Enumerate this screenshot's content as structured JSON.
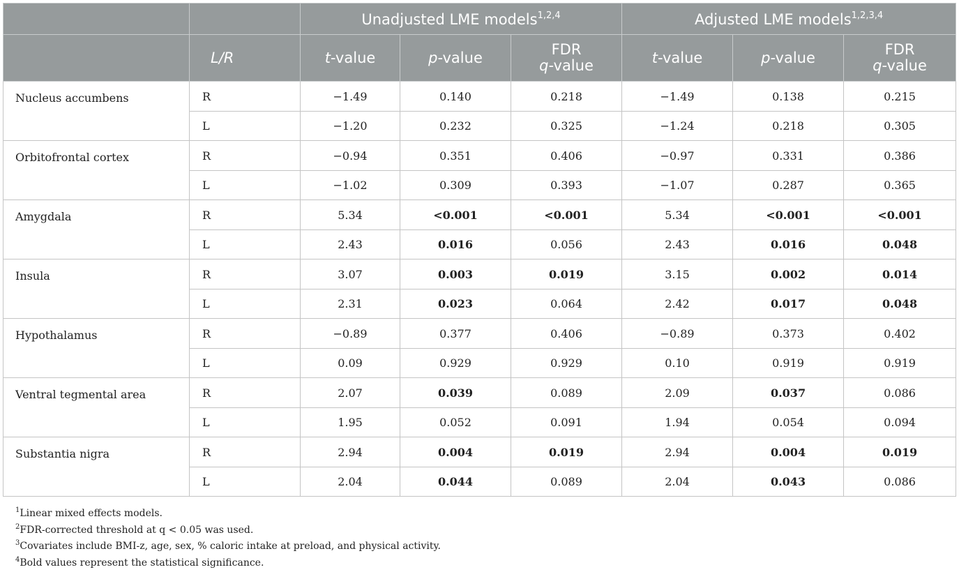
{
  "header": {
    "lr_label": "L/R",
    "groups": [
      {
        "title": "Unadjusted LME models",
        "sup": "1,2,4"
      },
      {
        "title": "Adjusted LME models",
        "sup": "1,2,3,4"
      }
    ],
    "cols": {
      "t": {
        "italic": "t",
        "rest": "-value"
      },
      "p": {
        "italic": "p",
        "rest": "-value"
      },
      "fdr": {
        "line1": "FDR",
        "italic": "q",
        "rest": "-value"
      }
    }
  },
  "regions": [
    {
      "name": "Nucleus accumbens",
      "rows": [
        {
          "side": "R",
          "vals": [
            "−1.49",
            "0.140",
            "0.218",
            "−1.49",
            "0.138",
            "0.215"
          ],
          "bold": [
            false,
            false,
            false,
            false,
            false,
            false
          ]
        },
        {
          "side": "L",
          "vals": [
            "−1.20",
            "0.232",
            "0.325",
            "−1.24",
            "0.218",
            "0.305"
          ],
          "bold": [
            false,
            false,
            false,
            false,
            false,
            false
          ]
        }
      ]
    },
    {
      "name": "Orbitofrontal cortex",
      "rows": [
        {
          "side": "R",
          "vals": [
            "−0.94",
            "0.351",
            "0.406",
            "−0.97",
            "0.331",
            "0.386"
          ],
          "bold": [
            false,
            false,
            false,
            false,
            false,
            false
          ]
        },
        {
          "side": "L",
          "vals": [
            "−1.02",
            "0.309",
            "0.393",
            "−1.07",
            "0.287",
            "0.365"
          ],
          "bold": [
            false,
            false,
            false,
            false,
            false,
            false
          ]
        }
      ]
    },
    {
      "name": "Amygdala",
      "rows": [
        {
          "side": "R",
          "vals": [
            "5.34",
            "<0.001",
            "<0.001",
            "5.34",
            "<0.001",
            "<0.001"
          ],
          "bold": [
            false,
            true,
            true,
            false,
            true,
            true
          ]
        },
        {
          "side": "L",
          "vals": [
            "2.43",
            "0.016",
            "0.056",
            "2.43",
            "0.016",
            "0.048"
          ],
          "bold": [
            false,
            true,
            false,
            false,
            true,
            true
          ]
        }
      ]
    },
    {
      "name": "Insula",
      "rows": [
        {
          "side": "R",
          "vals": [
            "3.07",
            "0.003",
            "0.019",
            "3.15",
            "0.002",
            "0.014"
          ],
          "bold": [
            false,
            true,
            true,
            false,
            true,
            true
          ]
        },
        {
          "side": "L",
          "vals": [
            "2.31",
            "0.023",
            "0.064",
            "2.42",
            "0.017",
            "0.048"
          ],
          "bold": [
            false,
            true,
            false,
            false,
            true,
            true
          ]
        }
      ]
    },
    {
      "name": "Hypothalamus",
      "rows": [
        {
          "side": "R",
          "vals": [
            "−0.89",
            "0.377",
            "0.406",
            "−0.89",
            "0.373",
            "0.402"
          ],
          "bold": [
            false,
            false,
            false,
            false,
            false,
            false
          ]
        },
        {
          "side": "L",
          "vals": [
            "0.09",
            "0.929",
            "0.929",
            "0.10",
            "0.919",
            "0.919"
          ],
          "bold": [
            false,
            false,
            false,
            false,
            false,
            false
          ]
        }
      ]
    },
    {
      "name": "Ventral tegmental area",
      "rows": [
        {
          "side": "R",
          "vals": [
            "2.07",
            "0.039",
            "0.089",
            "2.09",
            "0.037",
            "0.086"
          ],
          "bold": [
            false,
            true,
            false,
            false,
            true,
            false
          ]
        },
        {
          "side": "L",
          "vals": [
            "1.95",
            "0.052",
            "0.091",
            "1.94",
            "0.054",
            "0.094"
          ],
          "bold": [
            false,
            false,
            false,
            false,
            false,
            false
          ]
        }
      ]
    },
    {
      "name": "Substantia nigra",
      "rows": [
        {
          "side": "R",
          "vals": [
            "2.94",
            "0.004",
            "0.019",
            "2.94",
            "0.004",
            "0.019"
          ],
          "bold": [
            false,
            true,
            true,
            false,
            true,
            true
          ]
        },
        {
          "side": "L",
          "vals": [
            "2.04",
            "0.044",
            "0.089",
            "2.04",
            "0.043",
            "0.086"
          ],
          "bold": [
            false,
            true,
            false,
            false,
            true,
            false
          ]
        }
      ]
    }
  ],
  "footnotes": [
    {
      "sup": "1",
      "text": "Linear mixed effects models."
    },
    {
      "sup": "2",
      "text": "FDR-corrected threshold at q < 0.05 was used."
    },
    {
      "sup": "3",
      "text": "Covariates include BMI-z, age, sex, % caloric intake at preload, and physical activity."
    },
    {
      "sup": "4",
      "text": "Bold values represent the statistical significance."
    }
  ],
  "colors": {
    "header_bg": "#969b9c",
    "header_text": "#ffffff",
    "border": "#c4c4c4"
  }
}
